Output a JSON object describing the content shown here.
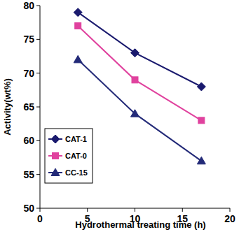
{
  "chart_data": {
    "type": "line",
    "x_label": "Hydrothermal treating time (h)",
    "y_label": "Activity(wt%)",
    "x": [
      4,
      10,
      17
    ],
    "series": [
      {
        "name": "CAT-1",
        "color": "#1a1a6e",
        "marker": "diamond",
        "line_style": "solid",
        "values": [
          79,
          73,
          68
        ]
      },
      {
        "name": "CAT-0",
        "color": "#e0429e",
        "marker": "square",
        "line_style": "solid",
        "values": [
          77,
          69,
          63
        ]
      },
      {
        "name": "CC-15",
        "color": "#232a78",
        "marker": "triangle",
        "line_style": "solid",
        "values": [
          72,
          64,
          57
        ]
      }
    ],
    "xlim": [
      0,
      20
    ],
    "xticks": [
      0,
      5,
      10,
      15,
      20
    ],
    "ylim": [
      50,
      80
    ],
    "yticks": [
      50,
      55,
      60,
      65,
      70,
      75,
      80
    ],
    "grid": false,
    "legend": "lower left"
  }
}
